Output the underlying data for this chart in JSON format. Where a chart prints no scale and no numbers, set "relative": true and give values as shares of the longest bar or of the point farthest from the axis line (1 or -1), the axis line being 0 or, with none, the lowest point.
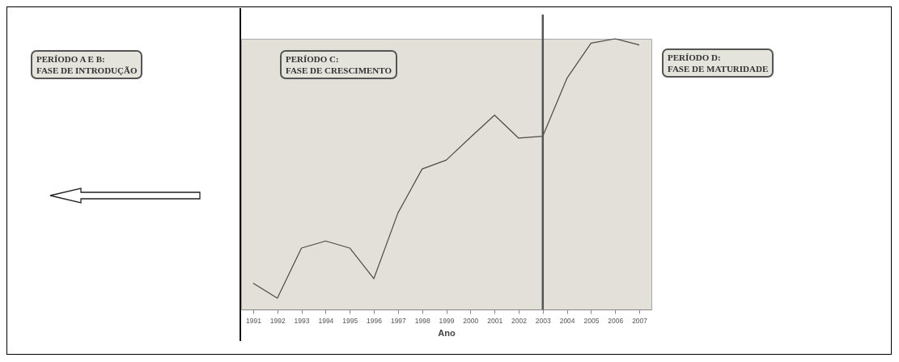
{
  "chart_data": {
    "type": "line",
    "relative": true,
    "xlabel": "Ano",
    "categories": [
      "1991",
      "1992",
      "1993",
      "1994",
      "1995",
      "1996",
      "1997",
      "1998",
      "1999",
      "2000",
      "2001",
      "2002",
      "2003",
      "2004",
      "2005",
      "2006",
      "2007"
    ],
    "series": [
      {
        "color": "#4a4a4a",
        "values": [
          0.097,
          0.042,
          0.227,
          0.253,
          0.227,
          0.114,
          0.357,
          0.519,
          0.552,
          0.636,
          0.718,
          0.633,
          0.64,
          0.854,
          0.984,
          1,
          0.977
        ]
      }
    ],
    "ref_lines": [
      {
        "axis": "x",
        "value": "2003",
        "color": "#555555"
      }
    ],
    "annotations": [
      "PERÍODO A E B:\nFASE DE INTRODUÇÃO",
      "PERÍODO C:\nFASE DE CRESCIMENTO",
      "PERÍODO D:\nFASE DE MATURIDADE"
    ]
  }
}
